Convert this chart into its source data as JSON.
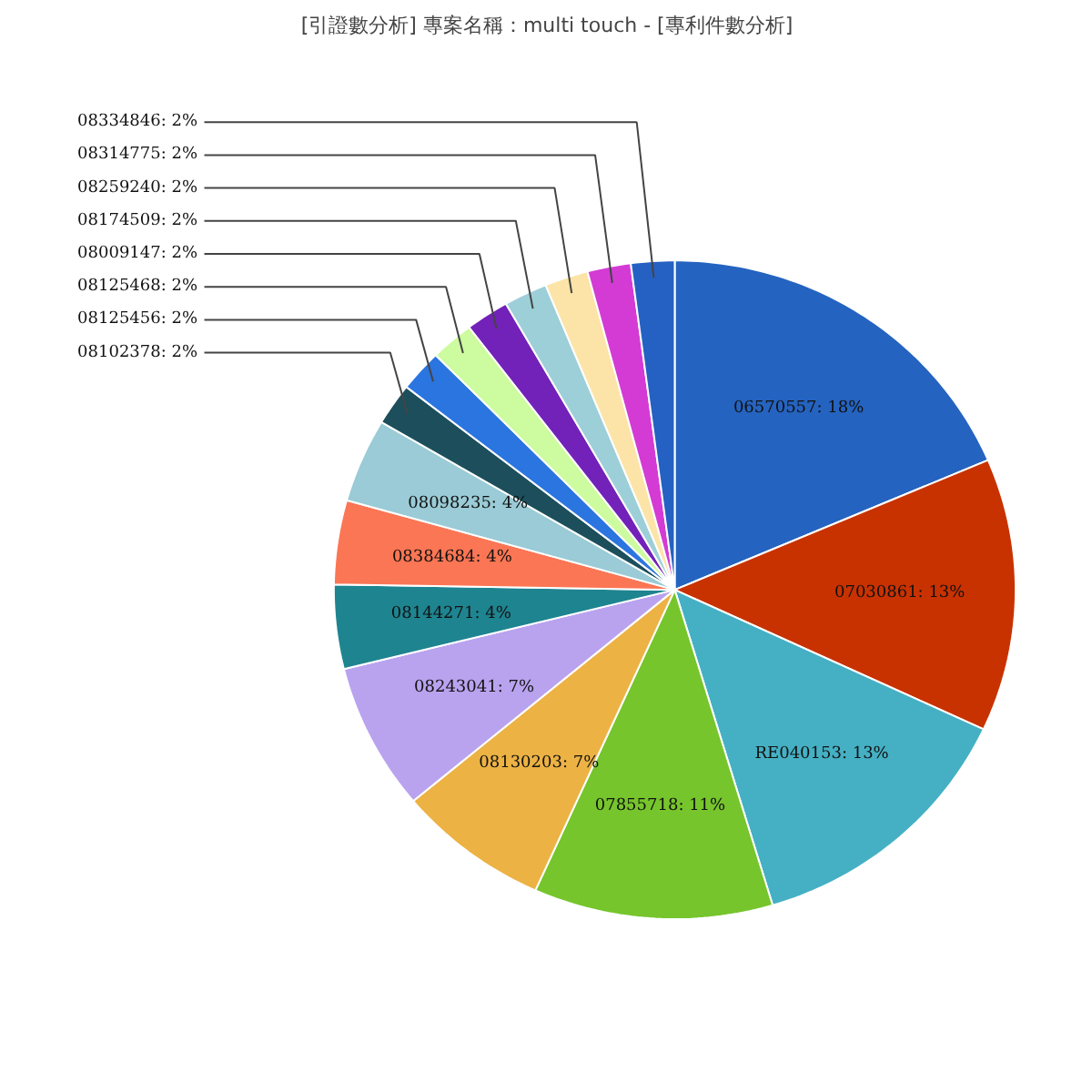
{
  "chart_data": {
    "type": "pie",
    "title": "[引證數分析] 專案名稱：multi touch - [專利件數分析]",
    "categories": [
      "06570557: 18%",
      "07030861: 13%",
      "RE040153: 13%",
      "07855718: 11%",
      "08130203: 7%",
      "08243041: 7%",
      "08144271: 4%",
      "08384684: 4%",
      "08098235: 4%",
      "08102378: 2%",
      "08125456: 2%",
      "08125468: 2%",
      "08009147: 2%",
      "08174509: 2%",
      "08259240: 2%",
      "08314775: 2%",
      "08334846: 2%"
    ],
    "values": [
      18,
      13,
      13,
      11,
      7,
      7,
      4,
      4,
      4,
      2,
      2,
      2,
      2,
      2,
      2,
      2,
      2
    ],
    "colors": [
      "#2563c0",
      "#c83200",
      "#45b0c4",
      "#76c52c",
      "#ecb244",
      "#b9a3ef",
      "#1e8490",
      "#fb7654",
      "#9acbd6",
      "#1c4f5b",
      "#2b75e0",
      "#cdfb9f",
      "#7222b8",
      "#9dcfd8",
      "#fce4a8",
      "#d43bd4",
      "#2561c2"
    ],
    "legend": false
  }
}
